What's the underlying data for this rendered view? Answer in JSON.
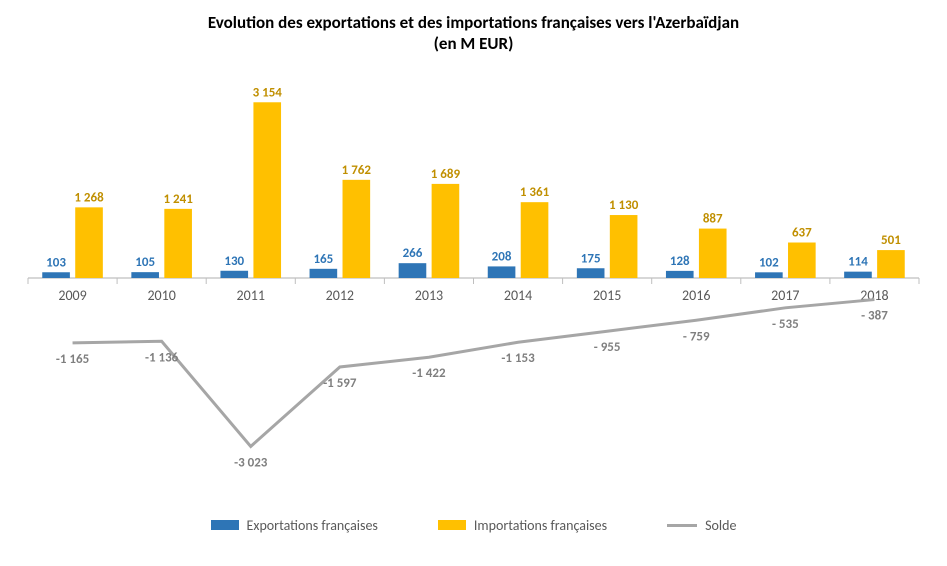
{
  "title_line1": "Evolution des exportations et des importations françaises vers l'Azerbaïdjan",
  "title_line2": "(en M EUR)",
  "chart": {
    "type": "bar+line",
    "categories": [
      "2009",
      "2010",
      "2011",
      "2012",
      "2013",
      "2014",
      "2015",
      "2016",
      "2017",
      "2018"
    ],
    "series": {
      "exports": {
        "label": "Exportations françaises",
        "color": "#2e75b6",
        "values": [
          103,
          105,
          130,
          165,
          266,
          208,
          175,
          128,
          102,
          114
        ],
        "display": [
          "103",
          "105",
          "130",
          "165",
          "266",
          "208",
          "175",
          "128",
          "102",
          "114"
        ]
      },
      "imports": {
        "label": "Importations françaises",
        "color": "#ffc000",
        "values": [
          1268,
          1241,
          3154,
          1762,
          1689,
          1361,
          1130,
          887,
          637,
          501
        ],
        "display": [
          "1 268",
          "1 241",
          "3 154",
          "1 762",
          "1 689",
          "1 361",
          "1 130",
          "887",
          "637",
          "501"
        ]
      },
      "balance": {
        "label": "Solde",
        "color": "#a6a6a6",
        "values": [
          -1165,
          -1136,
          -3023,
          -1597,
          -1422,
          -1153,
          -955,
          -759,
          -535,
          -387
        ],
        "display": [
          "-1 165",
          "-1 136",
          "-3 023",
          "-1 597",
          "-1 422",
          "-1 153",
          "- 955",
          "- 759",
          "- 535",
          "- 387"
        ]
      }
    },
    "y_axis": {
      "min": -3500,
      "max": 3500,
      "baseline": 0
    },
    "plot": {
      "bar_group_width": 0.68,
      "bar_gap": 0.06,
      "background": "#ffffff",
      "axis_color": "#bfbfbf",
      "line_width": 3,
      "marker_radius": 0
    },
    "typography": {
      "title_fontsize": 17,
      "title_weight": "bold",
      "data_label_fontsize": 13,
      "data_label_weight": "bold",
      "category_label_fontsize": 14,
      "category_label_color": "#595959",
      "legend_fontsize": 14,
      "legend_color": "#595959",
      "exports_label_color": "#2e75b6",
      "imports_label_color": "#c08f00",
      "balance_label_color": "#7f7f7f"
    }
  }
}
